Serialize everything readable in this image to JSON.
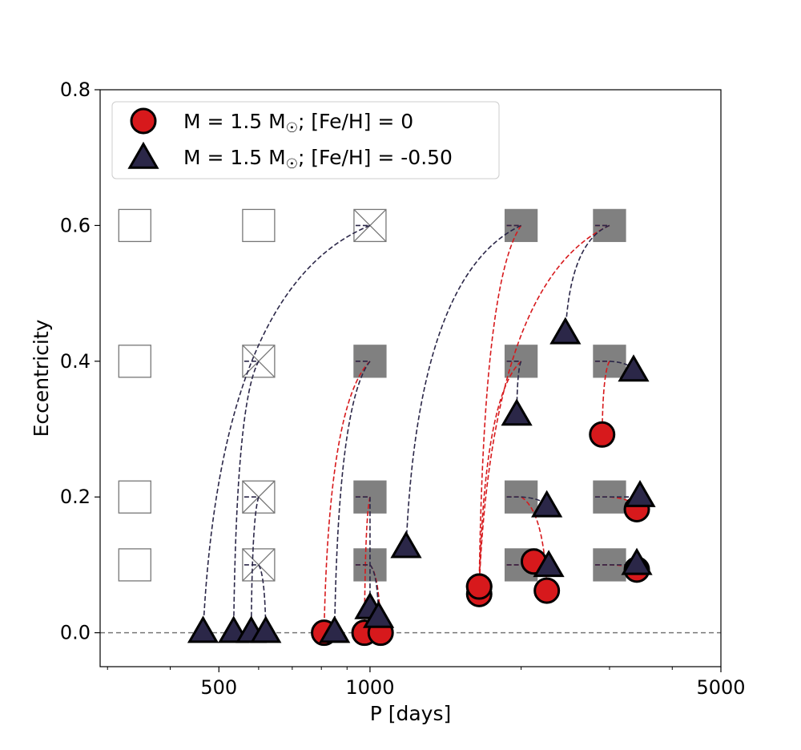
{
  "chart_data": {
    "type": "scatter",
    "xscale": "log",
    "xlabel": "P [days]",
    "ylabel": "Eccentricity",
    "xlim": [
      290,
      5000
    ],
    "ylim": [
      -0.05,
      0.8
    ],
    "xticks_major": [
      500,
      1000,
      5000
    ],
    "xticks_major_labels": [
      "500",
      "1000",
      "5000"
    ],
    "xticks_minor": [
      300,
      400,
      600,
      700,
      800,
      900,
      2000,
      3000,
      4000
    ],
    "yticks": [
      0.0,
      0.2,
      0.4,
      0.6,
      0.8
    ],
    "ytick_labels": [
      "0.0",
      "0.2",
      "0.4",
      "0.6",
      "0.8"
    ],
    "reference_line": {
      "y": 0.0,
      "style": "dashed",
      "color": "#777777"
    },
    "grid": false,
    "legend": {
      "placement": "top-left",
      "entries": [
        {
          "label": "M = 1.5 M",
          "sub": "☉",
          "suffix": ";  [Fe/H] = 0",
          "marker": "circle",
          "color": "#d7191c"
        },
        {
          "label": "M = 1.5 M",
          "sub": "☉",
          "suffix": ";  [Fe/H] = -0.50",
          "marker": "triangle",
          "color": "#2b2748"
        }
      ]
    },
    "colors": {
      "solar": "#d7191c",
      "metal_poor": "#2b2748",
      "initial_filled": "#808080",
      "initial_open": "#777777"
    },
    "initial_grid": [
      {
        "P": 340,
        "e": 0.6,
        "status": "open"
      },
      {
        "P": 340,
        "e": 0.4,
        "status": "open"
      },
      {
        "P": 340,
        "e": 0.2,
        "status": "open"
      },
      {
        "P": 340,
        "e": 0.1,
        "status": "open"
      },
      {
        "P": 600,
        "e": 0.6,
        "status": "open"
      },
      {
        "P": 600,
        "e": 0.4,
        "status": "crossed"
      },
      {
        "P": 600,
        "e": 0.2,
        "status": "crossed"
      },
      {
        "P": 600,
        "e": 0.1,
        "status": "crossed"
      },
      {
        "P": 1000,
        "e": 0.6,
        "status": "crossed"
      },
      {
        "P": 1000,
        "e": 0.4,
        "status": "filled"
      },
      {
        "P": 1000,
        "e": 0.2,
        "status": "filled"
      },
      {
        "P": 1000,
        "e": 0.1,
        "status": "filled"
      },
      {
        "P": 2000,
        "e": 0.6,
        "status": "filled"
      },
      {
        "P": 2000,
        "e": 0.4,
        "status": "filled"
      },
      {
        "P": 2000,
        "e": 0.2,
        "status": "filled"
      },
      {
        "P": 2000,
        "e": 0.1,
        "status": "filled"
      },
      {
        "P": 3000,
        "e": 0.6,
        "status": "filled"
      },
      {
        "P": 3000,
        "e": 0.4,
        "status": "filled"
      },
      {
        "P": 3000,
        "e": 0.2,
        "status": "filled"
      },
      {
        "P": 3000,
        "e": 0.1,
        "status": "filled"
      }
    ],
    "series": [
      {
        "name": "M = 1.5 M☉;  [Fe/H] = 0",
        "marker": "circle",
        "color": "#d7191c",
        "tracks": [
          {
            "P0": 1000,
            "e0": 0.4,
            "P": 810,
            "e": 0.0
          },
          {
            "P0": 1000,
            "e0": 0.2,
            "P": 975,
            "e": 0.0
          },
          {
            "P0": 1000,
            "e0": 0.1,
            "P": 1050,
            "e": 0.0
          },
          {
            "P0": 2000,
            "e0": 0.6,
            "P": 1650,
            "e": 0.068
          },
          {
            "P0": 2000,
            "e0": 0.4,
            "P": 1650,
            "e": 0.057
          },
          {
            "P0": 2000,
            "e0": 0.2,
            "P": 2250,
            "e": 0.062
          },
          {
            "P0": 2000,
            "e0": 0.1,
            "P": 2120,
            "e": 0.105
          },
          {
            "P0": 3000,
            "e0": 0.6,
            "P": 1650,
            "e": 0.068
          },
          {
            "P0": 3000,
            "e0": 0.4,
            "P": 2900,
            "e": 0.292
          },
          {
            "P0": 3000,
            "e0": 0.2,
            "P": 3400,
            "e": 0.182
          },
          {
            "P0": 3000,
            "e0": 0.1,
            "P": 3400,
            "e": 0.093
          }
        ]
      },
      {
        "name": "M = 1.5 M☉;  [Fe/H] = -0.50",
        "marker": "triangle",
        "color": "#2b2748",
        "tracks": [
          {
            "P0": 1000,
            "e0": 0.6,
            "P": 465,
            "e": 0.0
          },
          {
            "P0": 600,
            "e0": 0.4,
            "P": 535,
            "e": 0.0
          },
          {
            "P0": 600,
            "e0": 0.2,
            "P": 580,
            "e": 0.0
          },
          {
            "P0": 600,
            "e0": 0.1,
            "P": 620,
            "e": 0.0
          },
          {
            "P0": 1000,
            "e0": 0.4,
            "P": 850,
            "e": 0.0
          },
          {
            "P0": 1000,
            "e0": 0.2,
            "P": 1000,
            "e": 0.035
          },
          {
            "P0": 1000,
            "e0": 0.1,
            "P": 1040,
            "e": 0.022
          },
          {
            "P0": 2000,
            "e0": 0.6,
            "P": 1180,
            "e": 0.125
          },
          {
            "P0": 2000,
            "e0": 0.4,
            "P": 1960,
            "e": 0.32
          },
          {
            "P0": 2000,
            "e0": 0.2,
            "P": 2250,
            "e": 0.185
          },
          {
            "P0": 2000,
            "e0": 0.1,
            "P": 2270,
            "e": 0.097
          },
          {
            "P0": 3000,
            "e0": 0.6,
            "P": 2450,
            "e": 0.44
          },
          {
            "P0": 3000,
            "e0": 0.4,
            "P": 3350,
            "e": 0.385
          },
          {
            "P0": 3000,
            "e0": 0.2,
            "P": 3450,
            "e": 0.2
          },
          {
            "P0": 3000,
            "e0": 0.1,
            "P": 3400,
            "e": 0.1
          }
        ]
      }
    ]
  }
}
